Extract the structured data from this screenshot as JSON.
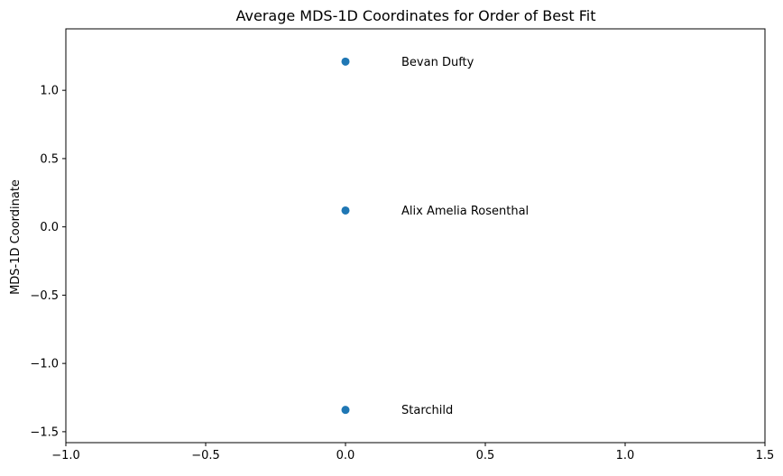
{
  "chart_data": {
    "type": "scatter",
    "title": "Average MDS-1D Coordinates for Order of Best Fit",
    "xlabel": "",
    "ylabel": "MDS-1D Coordinate",
    "xlim": [
      -1.0,
      1.5
    ],
    "ylim": [
      -1.58,
      1.45
    ],
    "xticks": [
      -1.0,
      -0.5,
      0.0,
      0.5,
      1.0,
      1.5
    ],
    "xtick_labels": [
      "−1.0",
      "−0.5",
      "0.0",
      "0.5",
      "1.0",
      "1.5"
    ],
    "yticks": [
      -1.5,
      -1.0,
      -0.5,
      0.0,
      0.5,
      1.0
    ],
    "ytick_labels": [
      "−1.5",
      "−1.0",
      "−0.5",
      "0.0",
      "0.5",
      "1.0"
    ],
    "grid": false,
    "marker_color": "#1f77b4",
    "points": [
      {
        "x": 0.0,
        "y": 1.21,
        "label": "Bevan Dufty",
        "label_x": 0.2
      },
      {
        "x": 0.0,
        "y": 0.12,
        "label": "Alix Amelia Rosenthal",
        "label_x": 0.2
      },
      {
        "x": 0.0,
        "y": -1.34,
        "label": "Starchild",
        "label_x": 0.2
      }
    ]
  }
}
